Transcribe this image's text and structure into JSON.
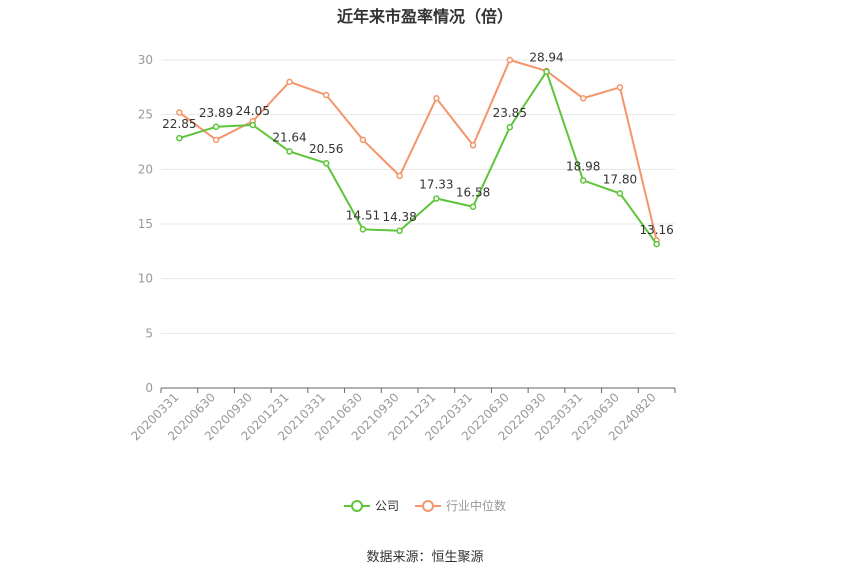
{
  "title": "近年来市盈率情况（倍）",
  "source": "数据来源：恒生聚源",
  "colors": {
    "company": "#5ec43a",
    "industry": "#f4956b",
    "grid": "#e6e6e6",
    "axis": "#666666",
    "tick": "#999999"
  },
  "legend": [
    {
      "label": "公司",
      "color": "#5ec43a"
    },
    {
      "label": "行业中位数",
      "color": "#f4956b"
    }
  ],
  "chart_data": {
    "type": "line",
    "title": "近年来市盈率情况（倍）",
    "categories": [
      "20200331",
      "20200630",
      "20200930",
      "20201231",
      "20210331",
      "20210630",
      "20210930",
      "20211231",
      "20220331",
      "20220630",
      "20220930",
      "20230331",
      "20230630",
      "20240820"
    ],
    "ylim": [
      0,
      30
    ],
    "yticks": [
      0,
      5,
      10,
      15,
      20,
      25,
      30
    ],
    "grid": true,
    "legend_position": "bottom",
    "series": [
      {
        "name": "公司",
        "color": "#5ec43a",
        "show_labels": true,
        "values": [
          22.85,
          23.89,
          24.05,
          21.64,
          20.56,
          14.51,
          14.38,
          17.33,
          16.58,
          23.85,
          28.94,
          18.98,
          17.8,
          13.16
        ]
      },
      {
        "name": "行业中位数",
        "color": "#f4956b",
        "show_labels": false,
        "values": [
          25.2,
          22.7,
          24.4,
          28.0,
          26.8,
          22.7,
          19.4,
          26.5,
          22.2,
          30.0,
          29.0,
          26.5,
          27.5,
          13.5
        ]
      }
    ]
  }
}
